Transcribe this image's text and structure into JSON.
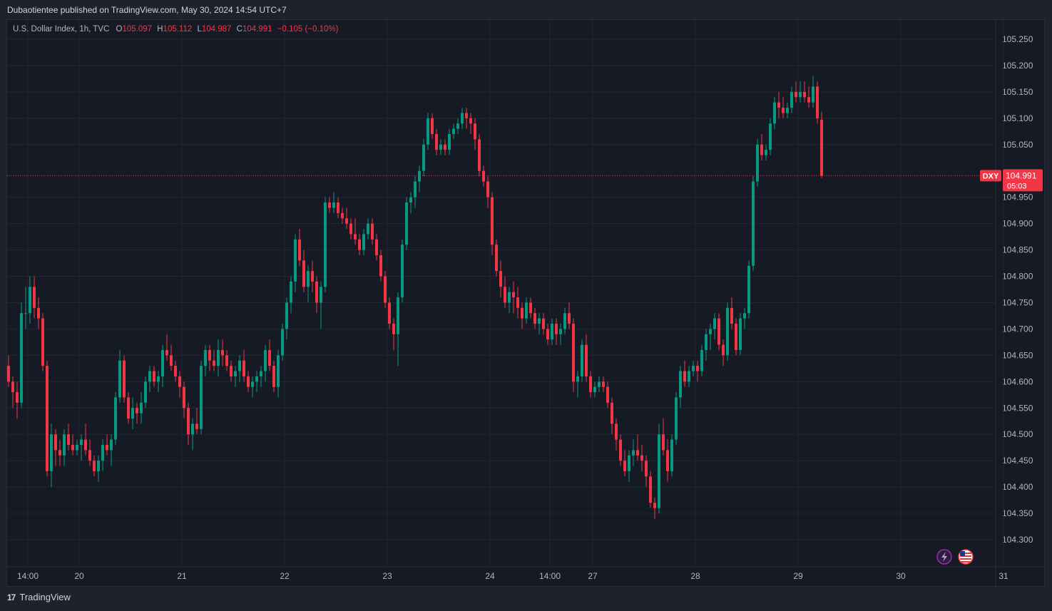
{
  "header": {
    "publish_text": "Dubaotientee published on TradingView.com, May 30, 2024 14:54 UTC+7"
  },
  "legend": {
    "symbol_text": "U.S. Dollar Index, 1h, TVC",
    "o_label": "O",
    "o_value": "105.097",
    "h_label": "H",
    "h_value": "105.112",
    "l_label": "L",
    "l_value": "104.987",
    "c_label": "C",
    "c_value": "104.991",
    "change": "−0.105 (−0.10%)"
  },
  "price_tag": {
    "symbol": "DXY",
    "price": "104.991",
    "countdown": "05:03"
  },
  "footer": {
    "brand": "TradingView",
    "logo_glyph": "17"
  },
  "icons": [
    "lightning-icon",
    "us-flag-icon"
  ],
  "colors": {
    "up": "#089981",
    "down": "#f23645",
    "background": "#161a25",
    "grid": "#232733"
  },
  "chart_data": {
    "type": "candlestick",
    "title": "U.S. Dollar Index, 1h, TVC",
    "ylim": [
      104.26,
      105.27
    ],
    "yticks": [
      "105.250",
      "105.200",
      "105.150",
      "105.100",
      "105.050",
      "104.950",
      "104.900",
      "104.850",
      "104.800",
      "104.750",
      "104.700",
      "104.650",
      "104.600",
      "104.550",
      "104.500",
      "104.450",
      "104.400",
      "104.350",
      "104.300"
    ],
    "xticks": [
      {
        "label": "14:00",
        "index": 2
      },
      {
        "label": "20",
        "index": 14
      },
      {
        "label": "21",
        "index": 38
      },
      {
        "label": "22",
        "index": 62
      },
      {
        "label": "23",
        "index": 86
      },
      {
        "label": "24",
        "index": 110
      },
      {
        "label": "14:00",
        "index": 124
      },
      {
        "label": "27",
        "index": 134
      },
      {
        "label": "28",
        "index": 158
      },
      {
        "label": "29",
        "index": 182
      },
      {
        "label": "30",
        "index": 206
      },
      {
        "label": "31",
        "index": 230
      }
    ],
    "last_price": 104.991,
    "candles": [
      [
        104.63,
        104.65,
        104.59,
        104.6
      ],
      [
        104.6,
        104.61,
        104.55,
        104.58
      ],
      [
        104.58,
        104.6,
        104.53,
        104.56
      ],
      [
        104.56,
        104.75,
        104.55,
        104.73
      ],
      [
        104.73,
        104.78,
        104.7,
        104.73
      ],
      [
        104.73,
        104.8,
        104.71,
        104.78
      ],
      [
        104.78,
        104.8,
        104.72,
        104.74
      ],
      [
        104.74,
        104.76,
        104.7,
        104.72
      ],
      [
        104.72,
        104.73,
        104.62,
        104.63
      ],
      [
        104.63,
        104.64,
        104.42,
        104.43
      ],
      [
        104.43,
        104.52,
        104.4,
        104.5
      ],
      [
        104.5,
        104.51,
        104.44,
        104.47
      ],
      [
        104.47,
        104.49,
        104.44,
        104.46
      ],
      [
        104.46,
        104.51,
        104.44,
        104.5
      ],
      [
        104.5,
        104.52,
        104.47,
        104.48
      ],
      [
        104.48,
        104.5,
        104.46,
        104.47
      ],
      [
        104.47,
        104.49,
        104.46,
        104.48
      ],
      [
        104.48,
        104.5,
        104.45,
        104.49
      ],
      [
        104.49,
        104.52,
        104.46,
        104.47
      ],
      [
        104.47,
        104.49,
        104.44,
        104.45
      ],
      [
        104.45,
        104.46,
        104.42,
        104.43
      ],
      [
        104.43,
        104.46,
        104.41,
        104.45
      ],
      [
        104.45,
        104.49,
        104.43,
        104.48
      ],
      [
        104.48,
        104.5,
        104.46,
        104.47
      ],
      [
        104.47,
        104.5,
        104.44,
        104.49
      ],
      [
        104.49,
        104.58,
        104.48,
        104.57
      ],
      [
        104.57,
        104.66,
        104.56,
        104.64
      ],
      [
        104.64,
        104.65,
        104.56,
        104.57
      ],
      [
        104.57,
        104.58,
        104.52,
        104.53
      ],
      [
        104.53,
        104.57,
        104.51,
        104.55
      ],
      [
        104.55,
        104.56,
        104.52,
        104.54
      ],
      [
        104.54,
        104.58,
        104.52,
        104.56
      ],
      [
        104.56,
        104.61,
        104.55,
        104.6
      ],
      [
        104.6,
        104.63,
        104.58,
        104.62
      ],
      [
        104.62,
        104.63,
        104.59,
        104.6
      ],
      [
        104.6,
        104.62,
        104.58,
        104.61
      ],
      [
        104.61,
        104.67,
        104.59,
        104.66
      ],
      [
        104.66,
        104.69,
        104.64,
        104.65
      ],
      [
        104.65,
        104.67,
        104.62,
        104.63
      ],
      [
        104.63,
        104.64,
        104.6,
        104.61
      ],
      [
        104.61,
        104.62,
        104.57,
        104.59
      ],
      [
        104.59,
        104.6,
        104.53,
        104.55
      ],
      [
        104.55,
        104.56,
        104.48,
        104.5
      ],
      [
        104.5,
        104.53,
        104.47,
        104.52
      ],
      [
        104.52,
        104.55,
        104.5,
        104.51
      ],
      [
        104.51,
        104.64,
        104.5,
        104.63
      ],
      [
        104.63,
        104.67,
        104.61,
        104.66
      ],
      [
        104.66,
        104.67,
        104.62,
        104.64
      ],
      [
        104.64,
        104.66,
        104.62,
        104.63
      ],
      [
        104.63,
        104.68,
        104.61,
        104.66
      ],
      [
        104.66,
        104.68,
        104.63,
        104.65
      ],
      [
        104.65,
        104.66,
        104.62,
        104.63
      ],
      [
        104.63,
        104.64,
        104.6,
        104.61
      ],
      [
        104.61,
        104.63,
        104.59,
        104.62
      ],
      [
        104.62,
        104.65,
        104.6,
        104.64
      ],
      [
        104.64,
        104.66,
        104.6,
        104.61
      ],
      [
        104.61,
        104.62,
        104.58,
        104.59
      ],
      [
        104.59,
        104.61,
        104.57,
        104.6
      ],
      [
        104.6,
        104.62,
        104.58,
        104.61
      ],
      [
        104.61,
        104.63,
        104.59,
        104.62
      ],
      [
        104.62,
        104.67,
        104.6,
        104.66
      ],
      [
        104.66,
        104.68,
        104.62,
        104.63
      ],
      [
        104.63,
        104.64,
        104.58,
        104.59
      ],
      [
        104.59,
        104.66,
        104.57,
        104.65
      ],
      [
        104.65,
        104.71,
        104.64,
        104.7
      ],
      [
        104.7,
        104.76,
        104.68,
        104.75
      ],
      [
        104.75,
        104.8,
        104.73,
        104.79
      ],
      [
        104.79,
        104.88,
        104.77,
        104.87
      ],
      [
        104.87,
        104.89,
        104.82,
        104.83
      ],
      [
        104.83,
        104.85,
        104.77,
        104.78
      ],
      [
        104.78,
        104.82,
        104.75,
        104.81
      ],
      [
        104.81,
        104.83,
        104.77,
        104.79
      ],
      [
        104.79,
        104.8,
        104.73,
        104.75
      ],
      [
        104.75,
        104.79,
        104.7,
        104.78
      ],
      [
        104.78,
        104.95,
        104.77,
        104.94
      ],
      [
        104.94,
        104.95,
        104.92,
        104.93
      ],
      [
        104.93,
        104.96,
        104.92,
        104.94
      ],
      [
        104.94,
        104.95,
        104.91,
        104.92
      ],
      [
        104.92,
        104.93,
        104.9,
        104.91
      ],
      [
        104.91,
        104.93,
        104.89,
        104.9
      ],
      [
        104.9,
        104.91,
        104.87,
        104.88
      ],
      [
        104.88,
        104.91,
        104.86,
        104.87
      ],
      [
        104.87,
        104.88,
        104.84,
        104.85
      ],
      [
        104.85,
        104.89,
        104.84,
        104.88
      ],
      [
        104.88,
        104.91,
        104.87,
        104.9
      ],
      [
        104.9,
        104.91,
        104.86,
        104.87
      ],
      [
        104.87,
        104.88,
        104.83,
        104.84
      ],
      [
        104.84,
        104.85,
        104.79,
        104.8
      ],
      [
        104.8,
        104.81,
        104.74,
        104.75
      ],
      [
        104.75,
        104.76,
        104.7,
        104.71
      ],
      [
        104.71,
        104.72,
        104.66,
        104.69
      ],
      [
        104.69,
        104.77,
        104.63,
        104.76
      ],
      [
        104.76,
        104.87,
        104.75,
        104.86
      ],
      [
        104.86,
        104.95,
        104.85,
        104.94
      ],
      [
        104.94,
        104.96,
        104.92,
        104.95
      ],
      [
        104.95,
        104.99,
        104.93,
        104.98
      ],
      [
        104.98,
        105.01,
        104.96,
        105.0
      ],
      [
        105.0,
        105.06,
        104.99,
        105.05
      ],
      [
        105.05,
        105.11,
        105.04,
        105.1
      ],
      [
        105.1,
        105.11,
        105.06,
        105.07
      ],
      [
        105.07,
        105.08,
        105.03,
        105.04
      ],
      [
        105.04,
        105.06,
        105.03,
        105.05
      ],
      [
        105.05,
        105.06,
        105.03,
        105.04
      ],
      [
        105.04,
        105.08,
        105.03,
        105.07
      ],
      [
        105.07,
        105.09,
        105.06,
        105.08
      ],
      [
        105.08,
        105.1,
        105.07,
        105.09
      ],
      [
        105.09,
        105.12,
        105.08,
        105.11
      ],
      [
        105.11,
        105.12,
        105.08,
        105.1
      ],
      [
        105.1,
        105.11,
        105.07,
        105.09
      ],
      [
        105.09,
        105.1,
        105.04,
        105.06
      ],
      [
        105.06,
        105.07,
        104.99,
        105.0
      ],
      [
        105.0,
        105.01,
        104.97,
        104.98
      ],
      [
        104.98,
        104.99,
        104.93,
        104.95
      ],
      [
        104.95,
        104.96,
        104.84,
        104.86
      ],
      [
        104.86,
        104.87,
        104.8,
        104.81
      ],
      [
        104.81,
        104.83,
        104.76,
        104.78
      ],
      [
        104.78,
        104.8,
        104.74,
        104.75
      ],
      [
        104.75,
        104.78,
        104.73,
        104.77
      ],
      [
        104.77,
        104.79,
        104.73,
        104.76
      ],
      [
        104.76,
        104.78,
        104.72,
        104.74
      ],
      [
        104.74,
        104.75,
        104.7,
        104.72
      ],
      [
        104.72,
        104.76,
        104.71,
        104.75
      ],
      [
        104.75,
        104.76,
        104.72,
        104.73
      ],
      [
        104.73,
        104.74,
        104.7,
        104.71
      ],
      [
        104.71,
        104.73,
        104.69,
        104.72
      ],
      [
        104.72,
        104.73,
        104.69,
        104.7
      ],
      [
        104.7,
        104.71,
        104.67,
        104.68
      ],
      [
        104.68,
        104.72,
        104.67,
        104.71
      ],
      [
        104.71,
        104.72,
        104.67,
        104.69
      ],
      [
        104.69,
        104.71,
        104.67,
        104.7
      ],
      [
        104.7,
        104.74,
        104.69,
        104.73
      ],
      [
        104.73,
        104.75,
        104.7,
        104.71
      ],
      [
        104.71,
        104.72,
        104.58,
        104.6
      ],
      [
        104.6,
        104.62,
        104.57,
        104.61
      ],
      [
        104.61,
        104.68,
        104.6,
        104.67
      ],
      [
        104.67,
        104.69,
        104.6,
        104.61
      ],
      [
        104.61,
        104.62,
        104.57,
        104.58
      ],
      [
        104.58,
        104.6,
        104.57,
        104.59
      ],
      [
        104.59,
        104.61,
        104.58,
        104.6
      ],
      [
        104.6,
        104.61,
        104.58,
        104.59
      ],
      [
        104.59,
        104.6,
        104.55,
        104.56
      ],
      [
        104.56,
        104.57,
        104.5,
        104.52
      ],
      [
        104.52,
        104.53,
        104.47,
        104.49
      ],
      [
        104.49,
        104.5,
        104.44,
        104.45
      ],
      [
        104.45,
        104.47,
        104.42,
        104.43
      ],
      [
        104.43,
        104.47,
        104.41,
        104.46
      ],
      [
        104.46,
        104.49,
        104.44,
        104.47
      ],
      [
        104.47,
        104.5,
        104.45,
        104.46
      ],
      [
        104.46,
        104.48,
        104.43,
        104.45
      ],
      [
        104.45,
        104.46,
        104.4,
        104.42
      ],
      [
        104.42,
        104.43,
        104.36,
        104.37
      ],
      [
        104.37,
        104.38,
        104.34,
        104.36
      ],
      [
        104.36,
        104.52,
        104.35,
        104.5
      ],
      [
        104.5,
        104.53,
        104.46,
        104.47
      ],
      [
        104.47,
        104.49,
        104.41,
        104.43
      ],
      [
        104.43,
        104.5,
        104.42,
        104.49
      ],
      [
        104.49,
        104.58,
        104.48,
        104.57
      ],
      [
        104.57,
        104.63,
        104.55,
        104.62
      ],
      [
        104.62,
        104.64,
        104.59,
        104.6
      ],
      [
        104.6,
        104.63,
        104.59,
        104.62
      ],
      [
        104.62,
        104.64,
        104.61,
        104.63
      ],
      [
        104.63,
        104.64,
        104.6,
        104.62
      ],
      [
        104.62,
        104.67,
        104.61,
        104.66
      ],
      [
        104.66,
        104.7,
        104.64,
        104.69
      ],
      [
        104.69,
        104.71,
        104.66,
        104.7
      ],
      [
        104.7,
        104.73,
        104.68,
        104.72
      ],
      [
        104.72,
        104.73,
        104.66,
        104.67
      ],
      [
        104.67,
        104.68,
        104.63,
        104.65
      ],
      [
        104.65,
        104.75,
        104.64,
        104.74
      ],
      [
        104.74,
        104.76,
        104.7,
        104.71
      ],
      [
        104.71,
        104.72,
        104.65,
        104.66
      ],
      [
        104.66,
        104.73,
        104.65,
        104.72
      ],
      [
        104.72,
        104.74,
        104.7,
        104.73
      ],
      [
        104.73,
        104.83,
        104.72,
        104.82
      ],
      [
        104.82,
        104.99,
        104.81,
        104.98
      ],
      [
        104.98,
        105.06,
        104.97,
        105.05
      ],
      [
        105.05,
        105.07,
        105.02,
        105.03
      ],
      [
        105.03,
        105.05,
        105.02,
        105.04
      ],
      [
        105.04,
        105.1,
        105.03,
        105.09
      ],
      [
        105.09,
        105.14,
        105.08,
        105.13
      ],
      [
        105.13,
        105.15,
        105.1,
        105.12
      ],
      [
        105.12,
        105.14,
        105.1,
        105.11
      ],
      [
        105.11,
        105.13,
        105.1,
        105.12
      ],
      [
        105.12,
        105.16,
        105.11,
        105.15
      ],
      [
        105.15,
        105.17,
        105.13,
        105.14
      ],
      [
        105.14,
        105.17,
        105.13,
        105.15
      ],
      [
        105.15,
        105.17,
        105.13,
        105.14
      ],
      [
        105.14,
        105.16,
        105.12,
        105.13
      ],
      [
        105.13,
        105.18,
        105.12,
        105.16
      ],
      [
        105.16,
        105.17,
        105.09,
        105.1
      ],
      [
        105.097,
        105.112,
        104.987,
        104.991
      ]
    ]
  }
}
